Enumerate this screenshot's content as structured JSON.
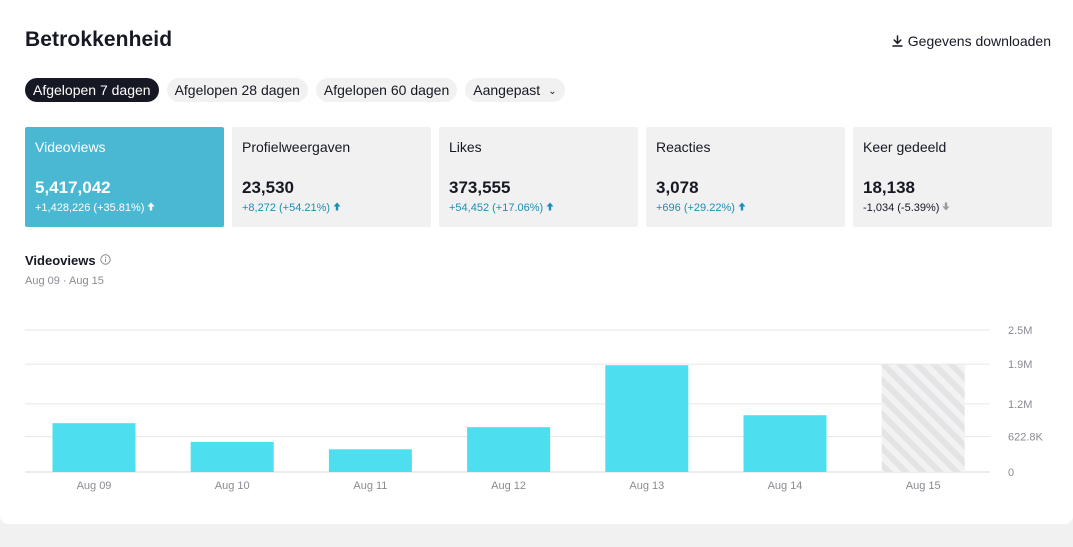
{
  "header": {
    "title": "Betrokkenheid",
    "download_label": "Gegevens downloaden"
  },
  "filters": [
    {
      "label": "Afgelopen 7 dagen",
      "active": true
    },
    {
      "label": "Afgelopen 28 dagen",
      "active": false
    },
    {
      "label": "Afgelopen 60 dagen",
      "active": false
    },
    {
      "label": "Aangepast",
      "active": false,
      "dropdown": true
    }
  ],
  "metrics": [
    {
      "label": "Videoviews",
      "value": "5,417,042",
      "delta": "+1,428,226 (+35.81%)",
      "direction": "up",
      "active": true
    },
    {
      "label": "Profielweergaven",
      "value": "23,530",
      "delta": "+8,272 (+54.21%)",
      "direction": "up",
      "active": false
    },
    {
      "label": "Likes",
      "value": "373,555",
      "delta": "+54,452 (+17.06%)",
      "direction": "up",
      "active": false
    },
    {
      "label": "Reacties",
      "value": "3,078",
      "delta": "+696 (+29.22%)",
      "direction": "up",
      "active": false
    },
    {
      "label": "Keer gedeeld",
      "value": "18,138",
      "delta": "-1,034 (-5.39%)",
      "direction": "down",
      "active": false
    }
  ],
  "chart_section": {
    "title": "Videoviews",
    "range": "Aug 09 · Aug 15"
  },
  "colors": {
    "active_card": "#4ab8d3",
    "bar": "#4ddfef",
    "positive": "#1b8fb2"
  },
  "chart_data": {
    "type": "bar",
    "categories": [
      "Aug 09",
      "Aug 10",
      "Aug 11",
      "Aug 12",
      "Aug 13",
      "Aug 14",
      "Aug 15"
    ],
    "values": [
      860000,
      530000,
      400000,
      790000,
      1880000,
      1000000,
      1890000
    ],
    "incomplete": [
      false,
      false,
      false,
      false,
      false,
      false,
      true
    ],
    "yticks": [
      0,
      622800,
      1200000,
      1900000,
      2500000
    ],
    "ytick_labels": [
      "0",
      "622.8K",
      "1.2M",
      "1.9M",
      "2.5M"
    ],
    "ylim": [
      0,
      2500000
    ],
    "grid": true,
    "y_axis_side": "right"
  }
}
